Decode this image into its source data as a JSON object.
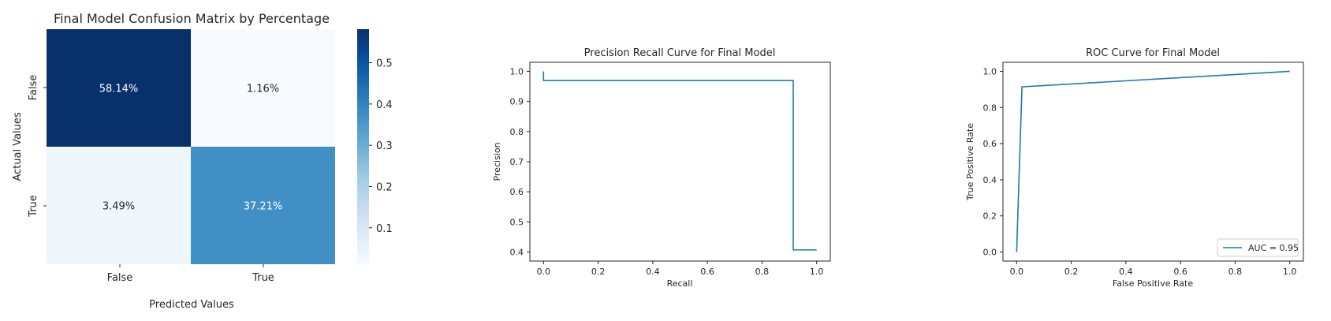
{
  "chart_data": [
    {
      "type": "heatmap",
      "title": "Final Model Confusion Matrix by Percentage",
      "xlabel": "Predicted Values",
      "ylabel": "Actual Values",
      "x_categories": [
        "False",
        "True"
      ],
      "y_categories": [
        "False",
        "True"
      ],
      "values": [
        [
          0.5814,
          0.0116
        ],
        [
          0.0349,
          0.3721
        ]
      ],
      "cell_labels": [
        [
          "58.14%",
          "1.16%"
        ],
        [
          "3.49%",
          "37.21%"
        ]
      ],
      "colorbar": {
        "min": 0.0116,
        "max": 0.5814,
        "ticks": [
          0.1,
          0.2,
          0.3,
          0.4,
          0.5
        ],
        "tick_labels": [
          "0.1",
          "0.2",
          "0.3",
          "0.4",
          "0.5"
        ]
      },
      "colormap": [
        "#f7fbff",
        "#deebf7",
        "#c6dbef",
        "#9ecae1",
        "#6baed6",
        "#4292c6",
        "#2171b5",
        "#08519c",
        "#08306b"
      ]
    },
    {
      "type": "line",
      "title": "Precision Recall Curve for Final Model",
      "xlabel": "Recall",
      "ylabel": "Precision",
      "xlim": [
        -0.05,
        1.05
      ],
      "ylim": [
        0.37,
        1.03
      ],
      "xticks": [
        0.0,
        0.2,
        0.4,
        0.6,
        0.8,
        1.0
      ],
      "xtick_labels": [
        "0.0",
        "0.2",
        "0.4",
        "0.6",
        "0.8",
        "1.0"
      ],
      "yticks": [
        0.4,
        0.5,
        0.6,
        0.7,
        0.8,
        0.9,
        1.0
      ],
      "ytick_labels": [
        "0.4",
        "0.5",
        "0.6",
        "0.7",
        "0.8",
        "0.9",
        "1.0"
      ],
      "color": "#1f77b4",
      "series": [
        {
          "x": [
            0.0,
            0.0,
            0.9143,
            0.9143,
            1.0
          ],
          "y": [
            1.0,
            0.9697,
            0.9697,
            0.407,
            0.407
          ]
        }
      ]
    },
    {
      "type": "line",
      "title": "ROC Curve for Final Model",
      "xlabel": "False Positive Rate",
      "ylabel": "True Positive Rate",
      "xlim": [
        -0.05,
        1.05
      ],
      "ylim": [
        -0.05,
        1.05
      ],
      "xticks": [
        0.0,
        0.2,
        0.4,
        0.6,
        0.8,
        1.0
      ],
      "xtick_labels": [
        "0.0",
        "0.2",
        "0.4",
        "0.6",
        "0.8",
        "1.0"
      ],
      "yticks": [
        0.0,
        0.2,
        0.4,
        0.6,
        0.8,
        1.0
      ],
      "ytick_labels": [
        "0.0",
        "0.2",
        "0.4",
        "0.6",
        "0.8",
        "1.0"
      ],
      "color": "#1f77b4",
      "legend": {
        "location": "lower-right",
        "label": "AUC = 0.95"
      },
      "series": [
        {
          "name": "AUC = 0.95",
          "x": [
            0.0,
            0.0196,
            1.0
          ],
          "y": [
            0.0,
            0.9143,
            1.0
          ]
        }
      ]
    }
  ]
}
